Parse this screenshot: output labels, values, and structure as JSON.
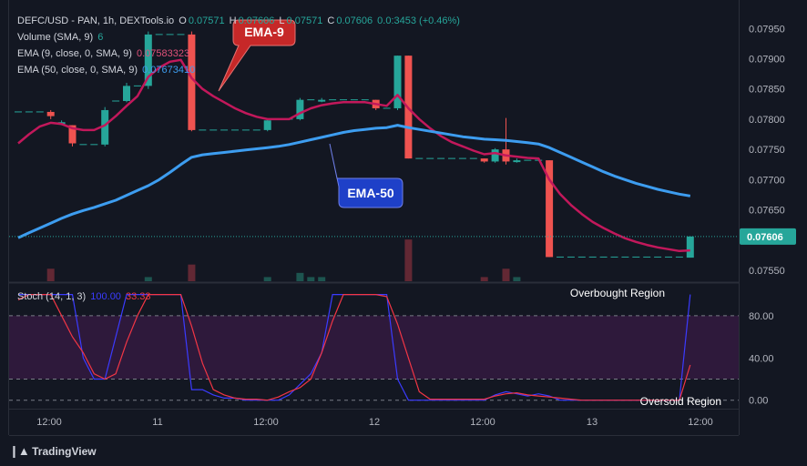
{
  "header": {
    "symbol_line": "DEFC/USD - PAN, 1h, DEXTools.io",
    "ohlc": [
      {
        "label": "O",
        "value": "0.07571"
      },
      {
        "label": "H",
        "value": "0.07606"
      },
      {
        "label": "L",
        "value": "0.07571"
      },
      {
        "label": "C",
        "value": "0.07606"
      }
    ],
    "change": "0.0:3453 (+0.46%)"
  },
  "indicators": [
    {
      "label": "Volume (SMA, 9)",
      "value": "6",
      "color": "#26a69a"
    },
    {
      "label": "EMA (9, close, 0, SMA, 9)",
      "value": "0.07583323",
      "color": "#e0527a"
    },
    {
      "label": "EMA (50, close, 0, SMA, 9)",
      "value": "0.07673410",
      "color": "#3d9df0"
    }
  ],
  "stoch_legend": {
    "label": "Stoch (14, 1, 3)",
    "k": "100.00",
    "d": "33.33",
    "k_color": "#3b3bff",
    "d_color": "#f23645"
  },
  "footer": {
    "brand": "TradingView"
  },
  "colors": {
    "up": "#26a69a",
    "down": "#ef5350",
    "ema9": "#c2185b",
    "ema50": "#3d9df0",
    "background": "#131722"
  },
  "chart_data": [
    {
      "type": "candlestick",
      "x_tick_labels": [
        "12:00",
        "11",
        "12:00",
        "12",
        "12:00",
        "13",
        "12:00"
      ],
      "y_tick_labels": [
        "0.07950",
        "0.07900",
        "0.07850",
        "0.07800",
        "0.07750",
        "0.07700",
        "0.07650",
        "0.07550"
      ],
      "ylim": [
        0.07532,
        0.07985
      ],
      "last_price": "0.07606",
      "candles": [
        {
          "o": 0.07812,
          "h": 0.07812,
          "l": 0.07812,
          "c": 0.07812
        },
        {
          "o": 0.07812,
          "h": 0.07812,
          "l": 0.07812,
          "c": 0.07812
        },
        {
          "o": 0.07812,
          "h": 0.07812,
          "l": 0.07812,
          "c": 0.07812
        },
        {
          "o": 0.07812,
          "h": 0.07815,
          "l": 0.078,
          "c": 0.07805
        },
        {
          "o": 0.07795,
          "h": 0.07798,
          "l": 0.0779,
          "c": 0.07795
        },
        {
          "o": 0.0779,
          "h": 0.0779,
          "l": 0.07755,
          "c": 0.0776
        },
        {
          "o": 0.07758,
          "h": 0.07758,
          "l": 0.07758,
          "c": 0.07758
        },
        {
          "o": 0.07758,
          "h": 0.07758,
          "l": 0.07758,
          "c": 0.07758
        },
        {
          "o": 0.07758,
          "h": 0.0782,
          "l": 0.07755,
          "c": 0.07815
        },
        {
          "o": 0.0783,
          "h": 0.0783,
          "l": 0.0783,
          "c": 0.0783
        },
        {
          "o": 0.0783,
          "h": 0.0786,
          "l": 0.07828,
          "c": 0.07855
        },
        {
          "o": 0.07855,
          "h": 0.07855,
          "l": 0.07855,
          "c": 0.07855
        },
        {
          "o": 0.07855,
          "h": 0.07945,
          "l": 0.0785,
          "c": 0.0794
        },
        {
          "o": 0.0794,
          "h": 0.0794,
          "l": 0.0794,
          "c": 0.0794
        },
        {
          "o": 0.0794,
          "h": 0.0794,
          "l": 0.0794,
          "c": 0.0794
        },
        {
          "o": 0.0794,
          "h": 0.0794,
          "l": 0.0794,
          "c": 0.0794
        },
        {
          "o": 0.0794,
          "h": 0.07945,
          "l": 0.0778,
          "c": 0.07782
        },
        {
          "o": 0.07782,
          "h": 0.07782,
          "l": 0.07782,
          "c": 0.07782
        },
        {
          "o": 0.07782,
          "h": 0.07782,
          "l": 0.07782,
          "c": 0.07782
        },
        {
          "o": 0.07782,
          "h": 0.07782,
          "l": 0.07782,
          "c": 0.07782
        },
        {
          "o": 0.07782,
          "h": 0.07782,
          "l": 0.07782,
          "c": 0.07782
        },
        {
          "o": 0.07782,
          "h": 0.07782,
          "l": 0.07782,
          "c": 0.07782
        },
        {
          "o": 0.07782,
          "h": 0.07782,
          "l": 0.07782,
          "c": 0.07782
        },
        {
          "o": 0.07782,
          "h": 0.078,
          "l": 0.0778,
          "c": 0.07798
        },
        {
          "o": 0.078,
          "h": 0.078,
          "l": 0.078,
          "c": 0.078
        },
        {
          "o": 0.078,
          "h": 0.078,
          "l": 0.078,
          "c": 0.078
        },
        {
          "o": 0.078,
          "h": 0.07835,
          "l": 0.07798,
          "c": 0.07832
        },
        {
          "o": 0.07832,
          "h": 0.07832,
          "l": 0.07832,
          "c": 0.07832
        },
        {
          "o": 0.07832,
          "h": 0.07835,
          "l": 0.07828,
          "c": 0.07832
        },
        {
          "o": 0.07832,
          "h": 0.07832,
          "l": 0.07832,
          "c": 0.07832
        },
        {
          "o": 0.07832,
          "h": 0.07832,
          "l": 0.07832,
          "c": 0.07832
        },
        {
          "o": 0.07832,
          "h": 0.07832,
          "l": 0.07832,
          "c": 0.07832
        },
        {
          "o": 0.07832,
          "h": 0.07832,
          "l": 0.07832,
          "c": 0.07832
        },
        {
          "o": 0.07832,
          "h": 0.07832,
          "l": 0.07815,
          "c": 0.07818
        },
        {
          "o": 0.07818,
          "h": 0.07818,
          "l": 0.07818,
          "c": 0.07818
        },
        {
          "o": 0.07818,
          "h": 0.07905,
          "l": 0.07815,
          "c": 0.07905
        },
        {
          "o": 0.07905,
          "h": 0.07905,
          "l": 0.07735,
          "c": 0.07735
        },
        {
          "o": 0.07735,
          "h": 0.07735,
          "l": 0.07735,
          "c": 0.07735
        },
        {
          "o": 0.07735,
          "h": 0.07735,
          "l": 0.07735,
          "c": 0.07735
        },
        {
          "o": 0.07735,
          "h": 0.07735,
          "l": 0.07735,
          "c": 0.07735
        },
        {
          "o": 0.07735,
          "h": 0.07735,
          "l": 0.07735,
          "c": 0.07735
        },
        {
          "o": 0.07735,
          "h": 0.07735,
          "l": 0.07735,
          "c": 0.07735
        },
        {
          "o": 0.07735,
          "h": 0.07735,
          "l": 0.07735,
          "c": 0.07735
        },
        {
          "o": 0.07735,
          "h": 0.07735,
          "l": 0.07728,
          "c": 0.0773
        },
        {
          "o": 0.0773,
          "h": 0.07752,
          "l": 0.07728,
          "c": 0.0775
        },
        {
          "o": 0.0775,
          "h": 0.07802,
          "l": 0.07725,
          "c": 0.0773
        },
        {
          "o": 0.0773,
          "h": 0.07735,
          "l": 0.07728,
          "c": 0.07732
        },
        {
          "o": 0.07732,
          "h": 0.07732,
          "l": 0.07732,
          "c": 0.07732
        },
        {
          "o": 0.07732,
          "h": 0.07732,
          "l": 0.07732,
          "c": 0.07732
        },
        {
          "o": 0.07732,
          "h": 0.07732,
          "l": 0.07572,
          "c": 0.07572
        },
        {
          "o": 0.07572,
          "h": 0.07572,
          "l": 0.07572,
          "c": 0.07572
        },
        {
          "o": 0.07572,
          "h": 0.07572,
          "l": 0.07572,
          "c": 0.07572
        },
        {
          "o": 0.07572,
          "h": 0.07572,
          "l": 0.07572,
          "c": 0.07572
        },
        {
          "o": 0.07572,
          "h": 0.07572,
          "l": 0.07572,
          "c": 0.07572
        },
        {
          "o": 0.07572,
          "h": 0.07572,
          "l": 0.07572,
          "c": 0.07572
        },
        {
          "o": 0.07572,
          "h": 0.07572,
          "l": 0.07572,
          "c": 0.07572
        },
        {
          "o": 0.07572,
          "h": 0.07572,
          "l": 0.07572,
          "c": 0.07572
        },
        {
          "o": 0.07572,
          "h": 0.07572,
          "l": 0.07572,
          "c": 0.07572
        },
        {
          "o": 0.07572,
          "h": 0.07572,
          "l": 0.07572,
          "c": 0.07572
        },
        {
          "o": 0.07572,
          "h": 0.07572,
          "l": 0.07572,
          "c": 0.07572
        },
        {
          "o": 0.07572,
          "h": 0.07572,
          "l": 0.07572,
          "c": 0.07572
        },
        {
          "o": 0.07572,
          "h": 0.07572,
          "l": 0.07572,
          "c": 0.07572
        },
        {
          "o": 0.07571,
          "h": 0.07606,
          "l": 0.07571,
          "c": 0.07606
        }
      ],
      "volume": [
        0,
        0,
        0,
        3,
        0,
        0,
        0,
        0,
        0,
        0,
        0,
        0,
        1,
        0,
        0,
        0,
        4,
        0,
        0,
        0,
        0,
        0,
        0,
        1,
        0,
        0,
        2,
        1,
        1,
        0,
        0,
        0,
        0,
        0,
        0,
        0,
        10,
        0,
        0,
        0,
        0,
        0,
        0,
        1,
        0,
        3,
        1,
        0,
        0,
        0,
        0,
        0,
        0,
        0,
        0,
        0,
        0,
        0,
        0,
        0,
        0,
        0,
        0
      ],
      "series": [
        {
          "name": "EMA-9",
          "values": [
            0.0776,
            0.07775,
            0.07788,
            0.07794,
            0.07792,
            0.07785,
            0.07782,
            0.07782,
            0.0779,
            0.07805,
            0.07822,
            0.07838,
            0.0787,
            0.07885,
            0.07895,
            0.07898,
            0.07868,
            0.0785,
            0.07838,
            0.07828,
            0.07818,
            0.0781,
            0.07804,
            0.078,
            0.078,
            0.078,
            0.0781,
            0.07818,
            0.07823,
            0.07826,
            0.07828,
            0.07828,
            0.07828,
            0.07825,
            0.07822,
            0.0784,
            0.07818,
            0.078,
            0.07785,
            0.07772,
            0.07762,
            0.07755,
            0.07748,
            0.07742,
            0.07744,
            0.0774,
            0.07738,
            0.07736,
            0.07735,
            0.077,
            0.07676,
            0.07658,
            0.07643,
            0.0763,
            0.0762,
            0.07611,
            0.07603,
            0.07597,
            0.07592,
            0.07588,
            0.07585,
            0.07582,
            0.07583
          ]
        },
        {
          "name": "EMA-50",
          "values": [
            0.07604,
            0.07612,
            0.0762,
            0.07628,
            0.07636,
            0.07643,
            0.07649,
            0.07654,
            0.0766,
            0.07666,
            0.07674,
            0.07682,
            0.0769,
            0.077,
            0.07712,
            0.07725,
            0.07737,
            0.07741,
            0.07743,
            0.07745,
            0.07747,
            0.07749,
            0.07751,
            0.07753,
            0.07755,
            0.07758,
            0.07762,
            0.07766,
            0.0777,
            0.07774,
            0.07778,
            0.07781,
            0.07783,
            0.07785,
            0.07786,
            0.0779,
            0.07786,
            0.07783,
            0.0778,
            0.07777,
            0.07774,
            0.07771,
            0.07769,
            0.07767,
            0.07766,
            0.07765,
            0.07763,
            0.07761,
            0.07759,
            0.07753,
            0.07745,
            0.07737,
            0.07729,
            0.07721,
            0.07713,
            0.07706,
            0.077,
            0.07694,
            0.07689,
            0.07684,
            0.0768,
            0.07676,
            0.07673
          ]
        }
      ],
      "annotations": [
        {
          "text": "EMA-9",
          "style": "callout",
          "color": "#c62828"
        },
        {
          "text": "EMA-50",
          "style": "callout",
          "color": "#1e40c8"
        }
      ]
    },
    {
      "type": "line",
      "title": "Stoch (14, 1, 3)",
      "y_tick_labels": [
        "80.00",
        "40.00",
        "0.00"
      ],
      "ylim": [
        -8,
        110
      ],
      "band": [
        20,
        80
      ],
      "region_labels": [
        {
          "text": "Overbought Region"
        },
        {
          "text": "Oversold Region"
        }
      ],
      "series": [
        {
          "name": "%K",
          "values": [
            100,
            100,
            100,
            100,
            100,
            100,
            40,
            20,
            20,
            60,
            100,
            100,
            100,
            100,
            100,
            100,
            10,
            10,
            5,
            2,
            2,
            0,
            0,
            0,
            0,
            5,
            15,
            25,
            45,
            100,
            100,
            100,
            100,
            100,
            100,
            20,
            0,
            0,
            0,
            0,
            0,
            0,
            0,
            0,
            5,
            8,
            6,
            4,
            6,
            4,
            0,
            0,
            0,
            0,
            0,
            0,
            0,
            0,
            0,
            0,
            0,
            0,
            100
          ]
        },
        {
          "name": "%D",
          "values": [
            95,
            100,
            100,
            100,
            80,
            60,
            45,
            25,
            20,
            25,
            55,
            80,
            100,
            100,
            100,
            100,
            70,
            35,
            10,
            5,
            2,
            1,
            1,
            0,
            3,
            8,
            12,
            20,
            45,
            75,
            100,
            100,
            100,
            100,
            98,
            72,
            40,
            8,
            1,
            1,
            1,
            1,
            1,
            1,
            4,
            6,
            7,
            5,
            4,
            3,
            2,
            1,
            0,
            0,
            0,
            0,
            0,
            0,
            0,
            0,
            0,
            0,
            33.33
          ]
        }
      ]
    }
  ]
}
